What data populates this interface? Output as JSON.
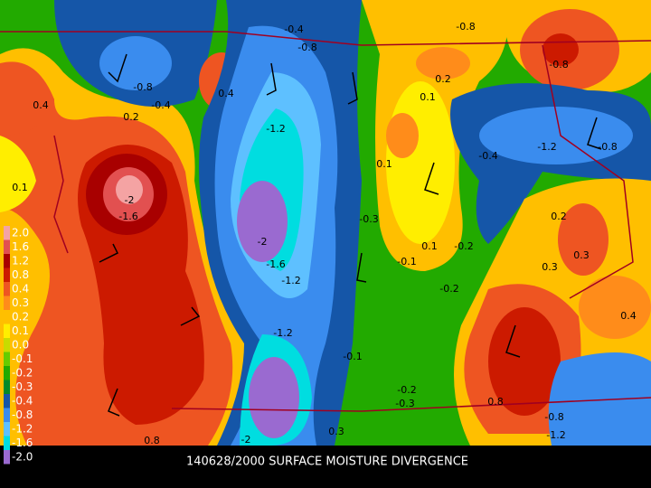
{
  "title": "140628/2000 SURFACE MOISTURE DIVERGENCE",
  "legend": [
    {
      "label": "2.0",
      "color": "#f4a3a3"
    },
    {
      "label": "1.6",
      "color": "#e25050"
    },
    {
      "label": "1.2",
      "color": "#a80000"
    },
    {
      "label": "0.8",
      "color": "#cc1a00"
    },
    {
      "label": "0.4",
      "color": "#ee5522"
    },
    {
      "label": "0.3",
      "color": "#ff8c1a"
    },
    {
      "label": "0.2",
      "color": "#ffbf00"
    },
    {
      "label": "0.1",
      "color": "#ffee00"
    },
    {
      "label": "0.0",
      "color": "#c8dc00"
    },
    {
      "label": "-0.1",
      "color": "#66cc00"
    },
    {
      "label": "-0.2",
      "color": "#22aa00"
    },
    {
      "label": "-0.3",
      "color": "#008a2a"
    },
    {
      "label": "-0.4",
      "color": "#1556a8"
    },
    {
      "label": "-0.8",
      "color": "#3a8cee"
    },
    {
      "label": "-1.2",
      "color": "#5ec0ff"
    },
    {
      "label": "-1.6",
      "color": "#00dde0"
    },
    {
      "label": "-2.0",
      "color": "#9a6ad0"
    }
  ],
  "contour_labels": [
    "0.4",
    "0.1",
    "-0.8",
    "-0.4",
    "0.2",
    "0.4",
    "-0.8",
    "-1.2",
    "-2",
    "-1.6",
    "-1.2",
    "-1.2",
    "-2",
    "-0.3",
    "0.1",
    "0.2",
    "0.1",
    "0.1",
    "-0.2",
    "-0.1",
    "-0.2",
    "-1.2",
    "-0.8",
    "-0.8",
    "-0.4",
    "0.2",
    "0.3",
    "0.3",
    "-0.1",
    "-0.2",
    "-0.3",
    "0.8",
    "-0.8",
    "-1.2",
    "0.8",
    "0.3",
    "-0.8",
    "-0.4",
    "0.4",
    "-2",
    "-1.6"
  ]
}
